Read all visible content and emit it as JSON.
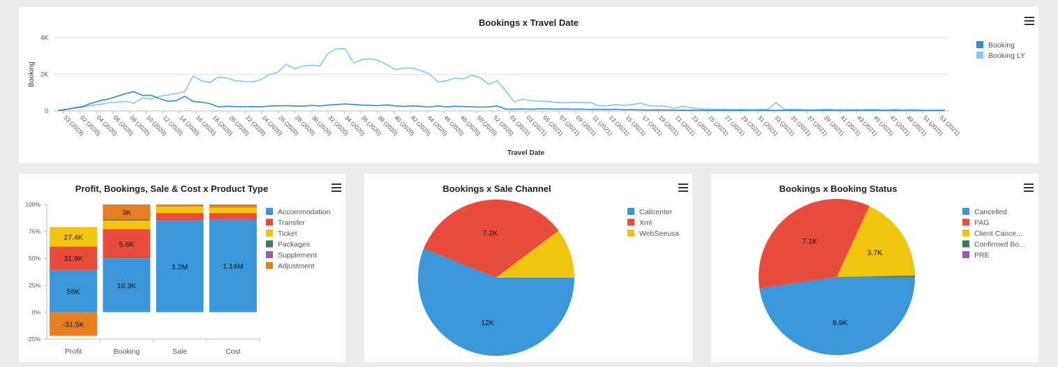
{
  "colors": {
    "booking": "#2f89d4",
    "booking_ly": "#7ccaf4",
    "accommodation": "#3a98da",
    "transfer": "#e84c3d",
    "ticket": "#f1c40f",
    "packages": "#3c7a5c",
    "supplement": "#9b59b6",
    "adjustment": "#e67e22"
  },
  "top": {
    "title": "Bookings x Travel Date",
    "menu_icon": "hamburger-menu-icon"
  },
  "left": {
    "title": "Profit, Bookings, Sale & Cost x Product Type",
    "menu_icon": "hamburger-menu-icon"
  },
  "mid": {
    "title": "Bookings x Sale Channel",
    "menu_icon": "hamburger-menu-icon"
  },
  "right": {
    "title": "Bookings x Booking Status",
    "menu_icon": "hamburger-menu-icon"
  },
  "chart_data": [
    {
      "type": "line",
      "title": "Bookings x Travel Date",
      "xlabel": "Travel Date",
      "ylabel": "Booking",
      "ylim": [
        0,
        4000
      ],
      "yticks": [
        "0",
        "2K",
        "4K"
      ],
      "grid": true,
      "legend_position": "top-right",
      "x_tick_labels": [
        "53 (2019)",
        "02 (2020)",
        "04 (2020)",
        "06 (2020)",
        "08 (2020)",
        "10 (2020)",
        "12 (2020)",
        "14 (2020)",
        "16 (2020)",
        "18 (2020)",
        "20 (2020)",
        "22 (2020)",
        "24 (2020)",
        "26 (2020)",
        "28 (2020)",
        "30 (2020)",
        "32 (2020)",
        "34 (2020)",
        "36 (2020)",
        "38 (2020)",
        "40 (2020)",
        "42 (2020)",
        "44 (2020)",
        "46 (2020)",
        "48 (2020)",
        "50 (2020)",
        "52 (2020)",
        "01 (2021)",
        "03 (2021)",
        "05 (2021)",
        "07 (2021)",
        "09 (2021)",
        "11 (2021)",
        "13 (2021)",
        "15 (2021)",
        "17 (2021)",
        "19 (2021)",
        "21 (2021)",
        "23 (2021)",
        "25 (2021)",
        "27 (2021)",
        "29 (2021)",
        "31 (2021)",
        "33 (2021)",
        "35 (2021)",
        "37 (2021)",
        "39 (2021)",
        "41 (2021)",
        "43 (2021)",
        "45 (2021)",
        "47 (2021)",
        "49 (2021)",
        "51 (2021)",
        "53 (2021)"
      ],
      "series": [
        {
          "name": "Booking",
          "values": [
            20,
            80,
            180,
            250,
            430,
            560,
            650,
            800,
            940,
            1050,
            850,
            860,
            680,
            530,
            560,
            800,
            520,
            480,
            400,
            220,
            260,
            240,
            230,
            240,
            220,
            270,
            280,
            290,
            270,
            260,
            300,
            270,
            320,
            350,
            380,
            350,
            320,
            300,
            290,
            330,
            270,
            250,
            280,
            250,
            210,
            280,
            220,
            260,
            240,
            230,
            210,
            220,
            270,
            100,
            100,
            110,
            90,
            120,
            110,
            100,
            110,
            90,
            100,
            80,
            90,
            80,
            90,
            70,
            70,
            60,
            50,
            60,
            50,
            50,
            40,
            40,
            40,
            30,
            40,
            30,
            30,
            30,
            30,
            30,
            40,
            30,
            40,
            30,
            30,
            30,
            30,
            30,
            30,
            20,
            30,
            30,
            30,
            30,
            20,
            30,
            20,
            30,
            20,
            20,
            20,
            20
          ]
        },
        {
          "name": "Booking LY",
          "values": [
            20,
            100,
            150,
            210,
            300,
            350,
            450,
            480,
            520,
            420,
            700,
            650,
            800,
            870,
            950,
            1050,
            1900,
            1650,
            1550,
            1850,
            1800,
            1650,
            1620,
            1580,
            1700,
            1980,
            2100,
            2550,
            2300,
            2450,
            2500,
            2450,
            3150,
            3400,
            3400,
            2620,
            2800,
            2850,
            2750,
            2500,
            2250,
            2350,
            2340,
            2200,
            2000,
            1580,
            1650,
            1800,
            1750,
            1950,
            1820,
            1450,
            1650,
            1100,
            500,
            640,
            560,
            530,
            520,
            470,
            440,
            480,
            450,
            470,
            290,
            280,
            350,
            300,
            350,
            420,
            280,
            280,
            250,
            150,
            260,
            170,
            120,
            100,
            80,
            100,
            70,
            90,
            60,
            80,
            90,
            450,
            80,
            100,
            80,
            60,
            70,
            90,
            60,
            80,
            70,
            60,
            80,
            70,
            60,
            80,
            60,
            70,
            60,
            50,
            60,
            60
          ]
        }
      ]
    },
    {
      "type": "bar",
      "stacked": true,
      "percent": true,
      "title": "Profit, Bookings, Sale & Cost x Product Type",
      "categories": [
        "Profit",
        "Booking",
        "Sale",
        "Cost"
      ],
      "ylim": [
        -25,
        100
      ],
      "yticks": [
        "-25%",
        "0%",
        "25%",
        "50%",
        "75%",
        "100%"
      ],
      "legend_position": "right",
      "series": [
        {
          "name": "Accommodation",
          "percents": [
            39,
            50,
            85,
            86
          ],
          "labels": [
            "56K",
            "10.3K",
            "1.2M",
            "1.14M"
          ]
        },
        {
          "name": "Transfer",
          "percents": [
            22,
            27,
            7,
            6
          ],
          "labels": [
            "31.9K",
            "5.6K",
            "",
            ""
          ]
        },
        {
          "name": "Ticket",
          "percents": [
            18,
            8,
            6,
            5
          ],
          "labels": [
            "27.4K",
            "",
            "",
            ""
          ]
        },
        {
          "name": "Packages",
          "percents": [
            0,
            1,
            0,
            0
          ],
          "labels": [
            "",
            "",
            "",
            ""
          ]
        },
        {
          "name": "Supplement",
          "percents": [
            0,
            0,
            0,
            0
          ],
          "labels": [
            "",
            "",
            "",
            ""
          ]
        },
        {
          "name": "Adjustment",
          "percents": [
            -22,
            14,
            2,
            3
          ],
          "labels": [
            "-31.5K",
            "3K",
            "",
            ""
          ]
        }
      ]
    },
    {
      "type": "pie",
      "title": "Bookings x Sale Channel",
      "legend_position": "right",
      "slices": [
        {
          "name": "Callcenter",
          "value": 12000,
          "label": "12K"
        },
        {
          "name": "Xml",
          "value": 7200,
          "label": "7.2K"
        },
        {
          "name": "WebSeeusa",
          "value": 2200,
          "label": ""
        }
      ]
    },
    {
      "type": "pie",
      "title": "Bookings x Booking Status",
      "legend_position": "right",
      "slices": [
        {
          "name": "Cancelled",
          "value": 9900,
          "label": "9.9K"
        },
        {
          "name": "PAG",
          "value": 7100,
          "label": "7.1K"
        },
        {
          "name": "Client Cance...",
          "value": 3700,
          "label": "3.7K"
        },
        {
          "name": "Confirmed Bo...",
          "value": 60,
          "label": ""
        },
        {
          "name": "PRE",
          "value": 0,
          "label": ""
        }
      ]
    }
  ]
}
